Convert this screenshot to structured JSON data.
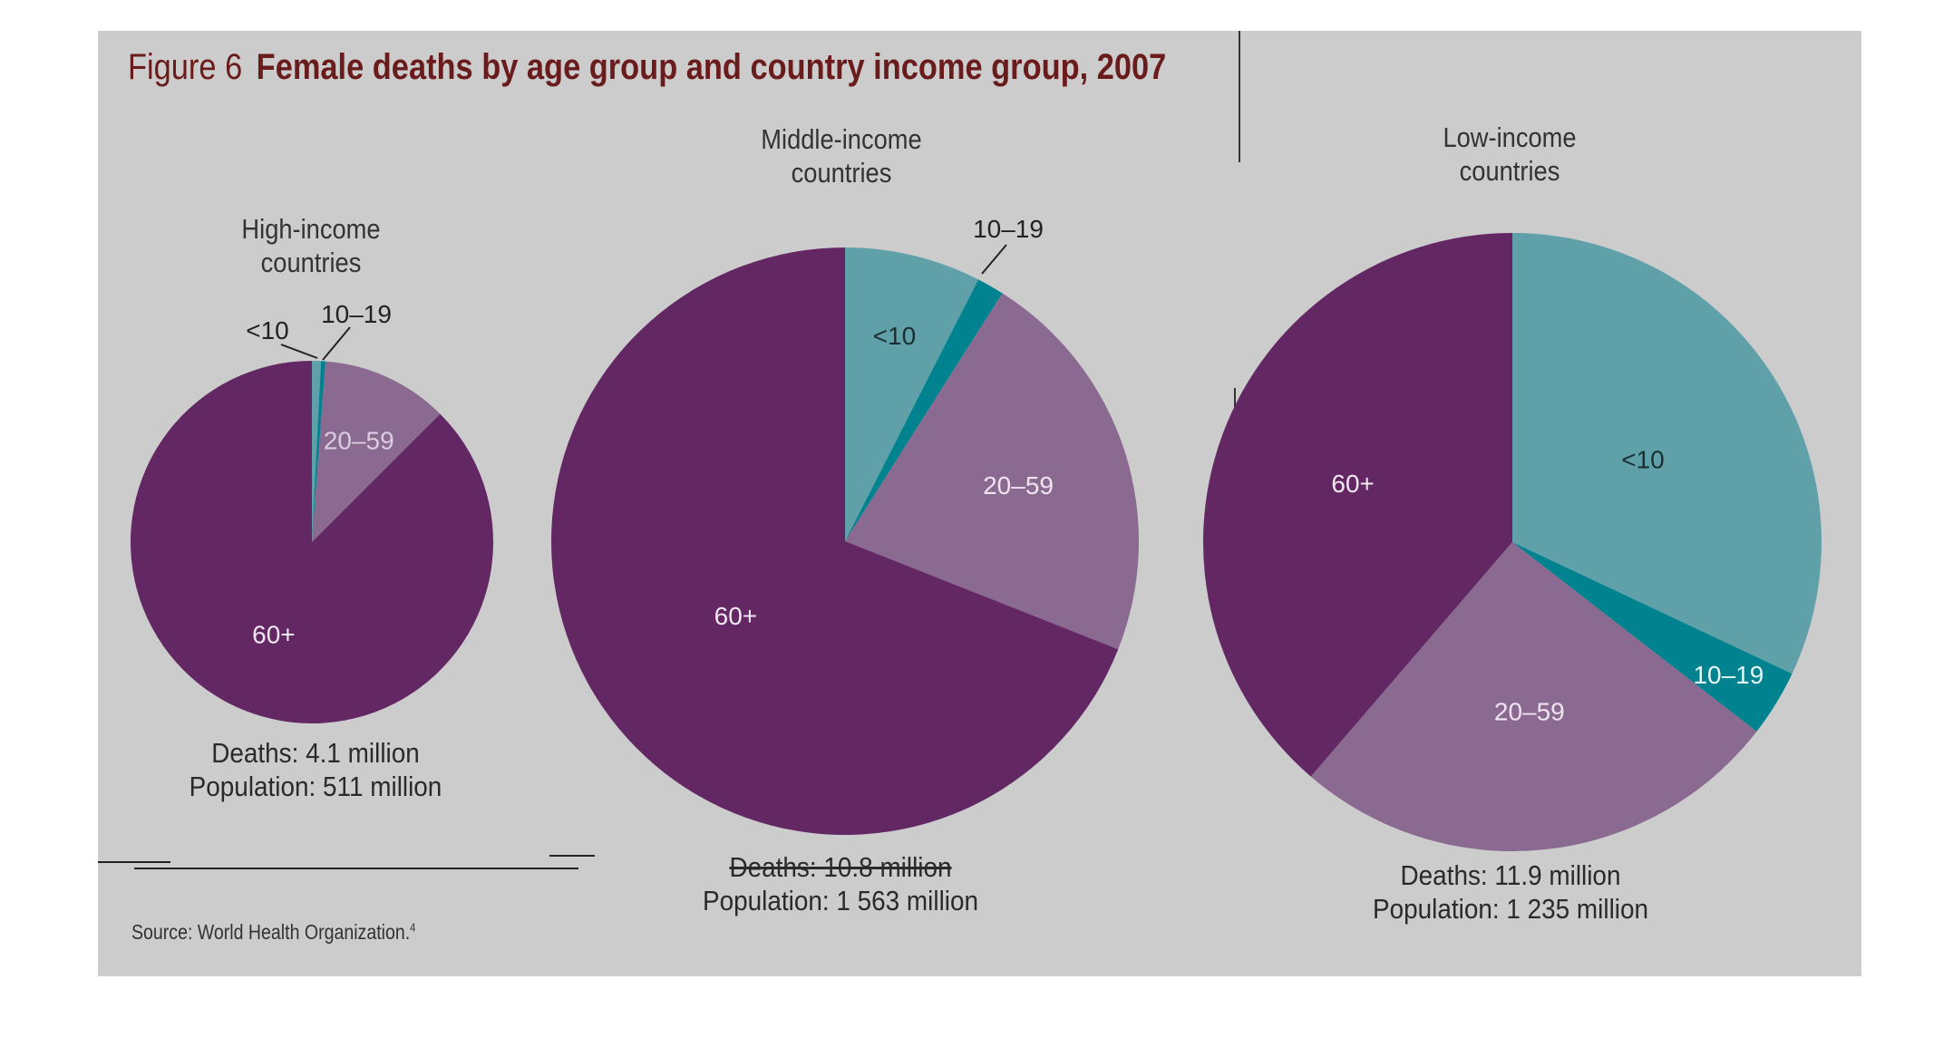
{
  "figure": {
    "number": "Figure 6",
    "title": "Female deaths by age group and country income group, 2007",
    "source": "Source: World Health Organization.",
    "source_ref": "4"
  },
  "colors": {
    "under10": "#5fa0a9",
    "age10_19": "#00838f",
    "age20_59": "#8a6a90",
    "age60plus": "#632764",
    "panel": "#cccccc"
  },
  "chart_data": [
    {
      "type": "pie",
      "title": "High-income countries",
      "categories": [
        "<10",
        "10–19",
        "20–59",
        "60+"
      ],
      "values": [
        0.8,
        0.4,
        11.3,
        87.5
      ],
      "caption_deaths": "Deaths: 4.1 million",
      "caption_population": "Population: 511 million"
    },
    {
      "type": "pie",
      "title": "Middle-income countries",
      "categories": [
        "<10",
        "10–19",
        "20–59",
        "60+"
      ],
      "values": [
        7.5,
        1.5,
        22.0,
        69.0
      ],
      "caption_deaths": "Deaths: 10.8 million",
      "caption_population": "Population: 1 563 million"
    },
    {
      "type": "pie",
      "title": "Low-income countries",
      "categories": [
        "<10",
        "10–19",
        "20–59",
        "60+"
      ],
      "values": [
        32.0,
        3.5,
        25.8,
        38.7
      ],
      "caption_deaths": "Deaths: 11.9 million",
      "caption_population": "Population: 1 235 million"
    }
  ],
  "labels": {
    "high_title_line1": "High-income",
    "high_title_line2": "countries",
    "middle_title_line1": "Middle-income",
    "middle_title_line2": "countries",
    "low_title_line1": "Low-income",
    "low_title_line2": "countries"
  }
}
